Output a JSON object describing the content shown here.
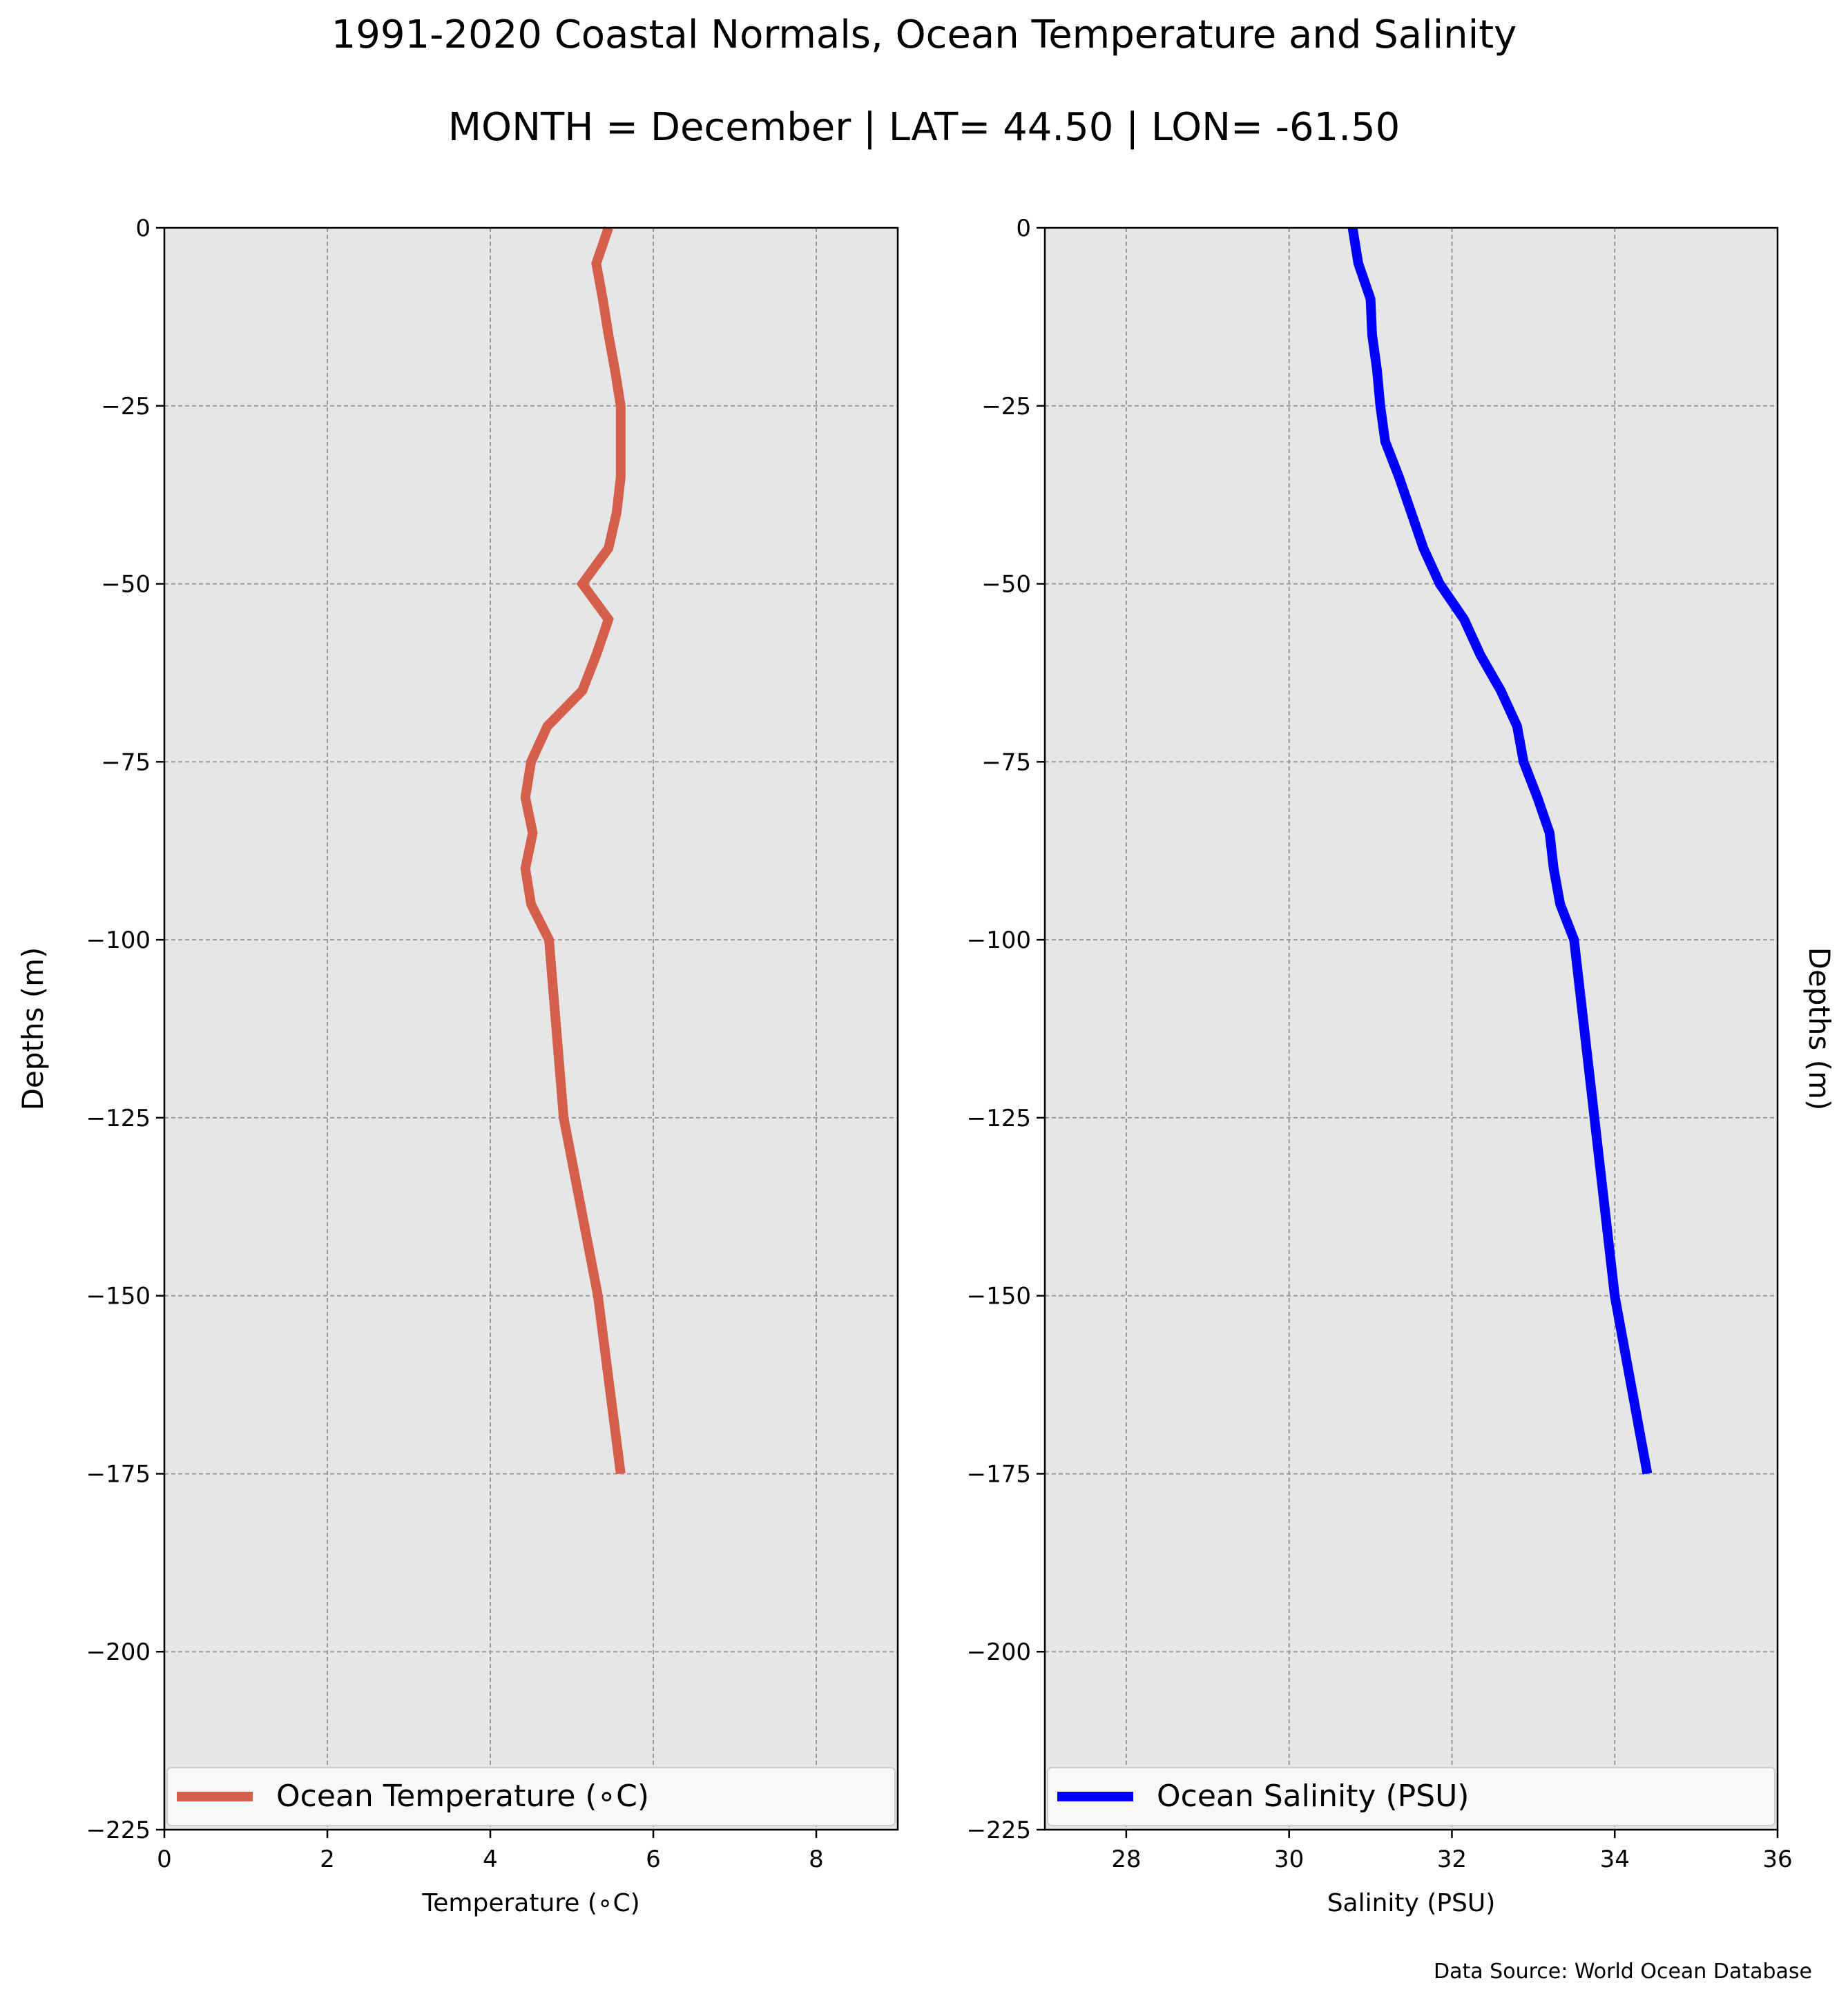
{
  "title": "1991-2020 Coastal Normals, Ocean Temperature and Salinity",
  "subtitle": "MONTH = December | LAT= 44.50 | LON= -61.50",
  "source": "Data Source: World Ocean Database",
  "chart_data": [
    {
      "type": "line",
      "xlabel": "Temperature (∘C)",
      "ylabel": "Depths (m)",
      "xlim": [
        0,
        9
      ],
      "ylim": [
        -225,
        0
      ],
      "xticks": [
        0,
        2,
        4,
        6,
        8
      ],
      "yticks": [
        0,
        -25,
        -50,
        -75,
        -100,
        -125,
        -150,
        -175,
        -200,
        -225
      ],
      "grid": true,
      "legend_position": "lower center",
      "series": [
        {
          "name": "Ocean Temperature (∘C)",
          "color": "#d65f4c",
          "x": [
            5.45,
            5.3,
            5.38,
            5.45,
            5.53,
            5.6,
            5.6,
            5.6,
            5.55,
            5.45,
            5.13,
            5.45,
            5.3,
            5.13,
            4.7,
            4.5,
            4.43,
            4.52,
            4.43,
            4.5,
            4.72,
            4.9,
            5.32,
            5.6
          ],
          "y": [
            0,
            -5,
            -10,
            -15,
            -20,
            -25,
            -30,
            -35,
            -40,
            -45,
            -50,
            -55,
            -60,
            -65,
            -70,
            -75,
            -80,
            -85,
            -90,
            -95,
            -100,
            -125,
            -150,
            -175
          ]
        }
      ]
    },
    {
      "type": "line",
      "xlabel": "Salinity (PSU)",
      "ylabel": "Depths (m)",
      "xlim": [
        27,
        36
      ],
      "ylim": [
        -225,
        0
      ],
      "xticks": [
        28,
        30,
        32,
        34,
        36
      ],
      "yticks": [
        0,
        -25,
        -50,
        -75,
        -100,
        -125,
        -150,
        -175,
        -200,
        -225
      ],
      "grid": true,
      "legend_position": "lower center",
      "series": [
        {
          "name": "Ocean Salinity (PSU)",
          "color": "#0000ff",
          "x": [
            30.78,
            30.85,
            31.0,
            31.02,
            31.08,
            31.12,
            31.18,
            31.35,
            31.5,
            31.65,
            31.85,
            32.15,
            32.35,
            32.6,
            32.8,
            32.88,
            33.05,
            33.2,
            33.25,
            33.33,
            33.5,
            33.75,
            34.0,
            34.4
          ],
          "y": [
            0,
            -5,
            -10,
            -15,
            -20,
            -25,
            -30,
            -35,
            -40,
            -45,
            -50,
            -55,
            -60,
            -65,
            -70,
            -75,
            -80,
            -85,
            -90,
            -95,
            -100,
            -125,
            -150,
            -175
          ]
        }
      ]
    }
  ]
}
